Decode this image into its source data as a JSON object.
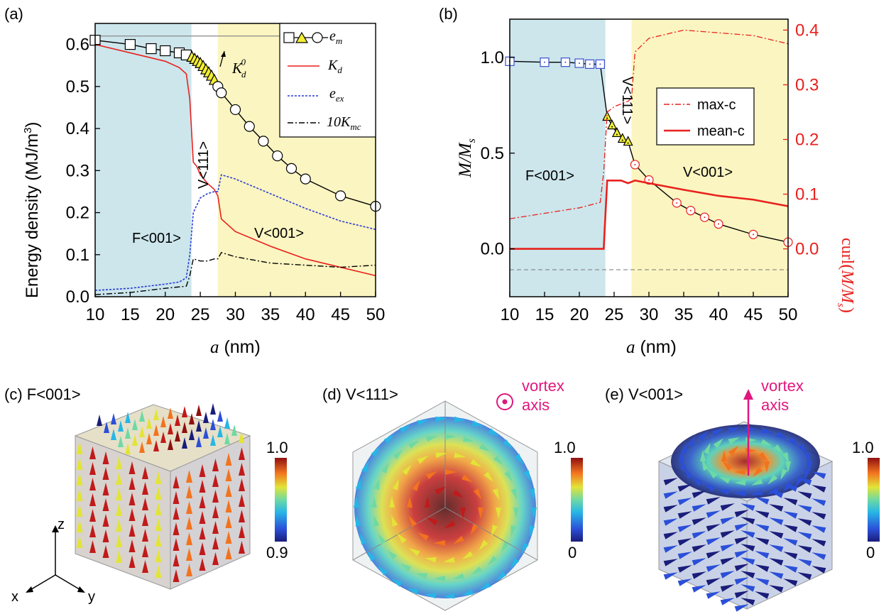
{
  "panels": {
    "a": "(a)",
    "b": "(b)",
    "c": "(c) F<001>",
    "d": "(d) V<111>",
    "e": "(e) V<001>"
  },
  "chart_data": [
    {
      "type": "line",
      "panel": "(a)",
      "xlabel": "a (nm)",
      "ylabel": "Energy density (MJ/m3)",
      "xlim": [
        10,
        50
      ],
      "ylim": [
        0,
        0.65
      ],
      "xticks": [
        10,
        15,
        20,
        25,
        30,
        35,
        40,
        45,
        50
      ],
      "yticks": [
        0.0,
        0.1,
        0.2,
        0.3,
        0.4,
        0.5,
        0.6
      ],
      "regions": [
        {
          "label": "F<001>",
          "from": 10,
          "to": 23.75,
          "color": "#cce6ec"
        },
        {
          "label": "V<111>",
          "from": 23.75,
          "to": 27.5,
          "color": "#ffffff"
        },
        {
          "label": "V<001>",
          "from": 27.5,
          "to": 50,
          "color": "#fbf5c1"
        }
      ],
      "annotation": "K_d^0",
      "reference_line": {
        "name": "K_d^0",
        "y": 0.62
      },
      "legend": [
        "e_m",
        "K_d",
        "e_ex",
        "10K_mc"
      ],
      "legend_position": "top-right",
      "series": [
        {
          "name": "e_m",
          "x": [
            10,
            15,
            18,
            20,
            22,
            23,
            23.8,
            24.2,
            24.6,
            25,
            25.4,
            25.8,
            26.2,
            26.6,
            27,
            27.5,
            28,
            30,
            32,
            34,
            36,
            38,
            40,
            45,
            50
          ],
          "y": [
            0.61,
            0.6,
            0.59,
            0.585,
            0.58,
            0.575,
            0.57,
            0.565,
            0.56,
            0.555,
            0.548,
            0.54,
            0.533,
            0.525,
            0.515,
            0.5,
            0.485,
            0.445,
            0.405,
            0.37,
            0.335,
            0.305,
            0.28,
            0.24,
            0.215
          ],
          "markers": {
            "square": [
              10,
              15,
              18,
              20,
              22,
              23
            ],
            "triangle": [
              23.8,
              24.2,
              24.6,
              25,
              25.4,
              25.8,
              26.2,
              26.6,
              27
            ],
            "circle": [
              27.5,
              28,
              30,
              32,
              34,
              36,
              38,
              40,
              45,
              50
            ]
          },
          "color": "#000000"
        },
        {
          "name": "K_d",
          "x": [
            10,
            15,
            20,
            22,
            23,
            23.5,
            24,
            24.5,
            25,
            26,
            27,
            27.5,
            28,
            30,
            35,
            40,
            45,
            50
          ],
          "y": [
            0.6,
            0.58,
            0.56,
            0.545,
            0.53,
            0.47,
            0.32,
            0.31,
            0.29,
            0.27,
            0.255,
            0.24,
            0.185,
            0.155,
            0.12,
            0.09,
            0.07,
            0.05
          ],
          "color": "#e8211d"
        },
        {
          "name": "e_ex",
          "x": [
            10,
            15,
            20,
            22,
            23,
            23.5,
            24,
            25,
            26,
            27,
            27.5,
            28,
            30,
            35,
            40,
            45,
            50
          ],
          "y": [
            0.015,
            0.02,
            0.03,
            0.035,
            0.045,
            0.1,
            0.2,
            0.235,
            0.245,
            0.25,
            0.25,
            0.29,
            0.28,
            0.245,
            0.21,
            0.18,
            0.16
          ],
          "color": "#2a3bd4"
        },
        {
          "name": "10K_mc",
          "x": [
            10,
            15,
            20,
            23,
            23.5,
            24,
            25,
            26,
            27,
            27.5,
            28,
            30,
            35,
            40,
            45,
            50
          ],
          "y": [
            0.005,
            0.01,
            0.02,
            0.025,
            0.05,
            0.09,
            0.085,
            0.085,
            0.09,
            0.09,
            0.105,
            0.095,
            0.08,
            0.075,
            0.07,
            0.075
          ],
          "color": "#000000"
        }
      ]
    },
    {
      "type": "line",
      "panel": "(b)",
      "xlabel": "a (nm)",
      "ylabel_left": "M/Ms",
      "ylabel_right": "curl(M/Ms)",
      "xlim": [
        10,
        50
      ],
      "ylim_left": [
        -0.25,
        1.2
      ],
      "ylim_right": [
        -0.0875,
        0.42
      ],
      "xticks": [
        10,
        15,
        20,
        25,
        30,
        35,
        40,
        45,
        50
      ],
      "yticks_left": [
        0.0,
        0.5,
        1.0
      ],
      "yticks_right": [
        0.0,
        0.1,
        0.2,
        0.3,
        0.4
      ],
      "regions": [
        {
          "label": "F<001>",
          "from": 10,
          "to": 23.75,
          "color": "#cce6ec"
        },
        {
          "label": "V<111>",
          "from": 23.75,
          "to": 27.5,
          "color": "#ffffff"
        },
        {
          "label": "V<001>",
          "from": 27.5,
          "to": 50,
          "color": "#fbf5c1"
        }
      ],
      "legend": [
        "max-c",
        "mean-c"
      ],
      "legend_position": "center-right",
      "series": [
        {
          "name": "M/Ms",
          "axis": "left",
          "x": [
            10,
            15,
            18,
            20,
            21.5,
            23,
            24,
            24.7,
            25.4,
            26.2,
            27,
            28,
            30,
            34,
            36,
            38,
            40,
            45,
            50
          ],
          "y": [
            0.98,
            0.975,
            0.975,
            0.97,
            0.965,
            0.965,
            0.69,
            0.645,
            0.605,
            0.575,
            0.56,
            0.44,
            0.36,
            0.24,
            0.2,
            0.165,
            0.13,
            0.075,
            0.035
          ],
          "markers": {
            "square": [
              10,
              15,
              18,
              20,
              21.5,
              23
            ],
            "triangle": [
              24,
              24.7,
              25.4,
              26.2,
              27
            ],
            "circle": [
              28,
              30,
              34,
              36,
              38,
              40,
              45,
              50
            ]
          },
          "color": "#000000"
        },
        {
          "name": "max-c",
          "axis": "right",
          "x": [
            10,
            15,
            20,
            23,
            23.5,
            24,
            24.5,
            25,
            26,
            27,
            27.5,
            28,
            30,
            35,
            40,
            45,
            50
          ],
          "y": [
            0.055,
            0.065,
            0.075,
            0.085,
            0.14,
            0.25,
            0.255,
            0.26,
            0.265,
            0.27,
            0.275,
            0.36,
            0.385,
            0.4,
            0.395,
            0.39,
            0.375
          ],
          "color": "#e8211d"
        },
        {
          "name": "mean-c",
          "axis": "right",
          "x": [
            10,
            15,
            20,
            23,
            23.5,
            24,
            25,
            26,
            27,
            28,
            30,
            35,
            40,
            45,
            50
          ],
          "y": [
            0.0,
            0.0,
            0.0,
            0.0,
            0.0,
            0.125,
            0.125,
            0.125,
            0.12,
            0.125,
            0.12,
            0.108,
            0.097,
            0.09,
            0.078
          ],
          "color": "#e8211d"
        }
      ]
    }
  ],
  "cube_panels": [
    {
      "colorbar_max": "1.0",
      "colorbar_min": "0.9"
    },
    {
      "colorbar_max": "1.0",
      "colorbar_min": "0",
      "annotation": "vortex axis"
    },
    {
      "colorbar_max": "1.0",
      "colorbar_min": "0",
      "annotation": "vortex axis"
    }
  ],
  "axes_triad": {
    "z": "z",
    "x": "x",
    "y": "y"
  },
  "colors": {
    "red": "#e8211d",
    "blue": "#2a3bd4",
    "magenta": "#e0177d",
    "teal": "#cce6ec",
    "yellow": "#fbf5c1",
    "marker_yellow": "#f3ee34"
  }
}
